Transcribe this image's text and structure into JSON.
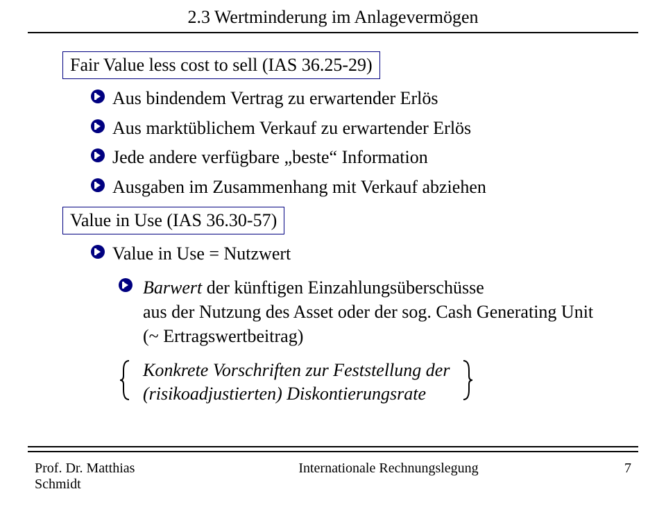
{
  "title": "2.3 Wertminderung im Anlagevermögen",
  "box1": "Fair Value less cost to sell (IAS 36.25-29)",
  "bullets1": [
    "Aus bindendem Vertrag zu erwartender Erlös",
    "Aus marktüblichem Verkauf zu erwartender Erlös",
    "Jede andere verfügbare „beste“ Information",
    "Ausgaben im Zusammenhang mit Verkauf abziehen"
  ],
  "box2": "Value in Use (IAS 36.30-57)",
  "bullet2": "Value in Use = Nutzwert",
  "sub_bullet_html": "<span class=\"italic\">Barwert</span> der künftigen Einzahlungsüberschüsse<br>aus der Nutzung des Asset oder der sog. Cash Generating Unit<br>(~ Ertragswertbeitrag)",
  "cup_line1": "Konkrete Vorschriften zur Feststellung der",
  "cup_line2": "(risikoadjustierten) Diskontierungsrate",
  "footer": {
    "left_line1": "Prof. Dr. Matthias",
    "left_line2": "Schmidt",
    "center": "Internationale Rechnungslegung",
    "page": "7"
  },
  "colors": {
    "arrow": "#000080",
    "box_border": "#000080",
    "text": "#000000",
    "rule": "#000000",
    "background": "#ffffff"
  }
}
